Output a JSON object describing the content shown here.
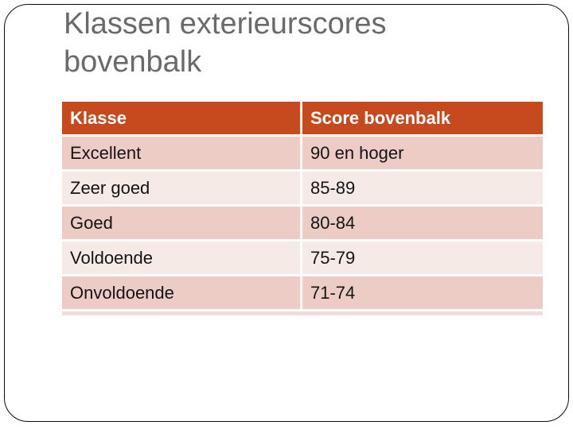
{
  "slide": {
    "title": "Klassen exterieurscores bovenbalk"
  },
  "table": {
    "headers": [
      "Klasse",
      "Score bovenbalk"
    ],
    "rows": [
      [
        "Excellent",
        "90 en hoger"
      ],
      [
        "Zeer goed",
        "85-89"
      ],
      [
        "Goed",
        "80-84"
      ],
      [
        "Voldoende",
        "75-79"
      ],
      [
        "Onvoldoende",
        "71-74"
      ]
    ]
  },
  "colors": {
    "header_bg": "#C7491E",
    "header_text": "#FFFFFF",
    "row_dark": "#EDCCC5",
    "row_light": "#F6EAE6",
    "cell_text": "#141414",
    "title_text": "#6A6A6A",
    "slide_border": "#0D0D0D",
    "background": "#FFFFFF"
  }
}
